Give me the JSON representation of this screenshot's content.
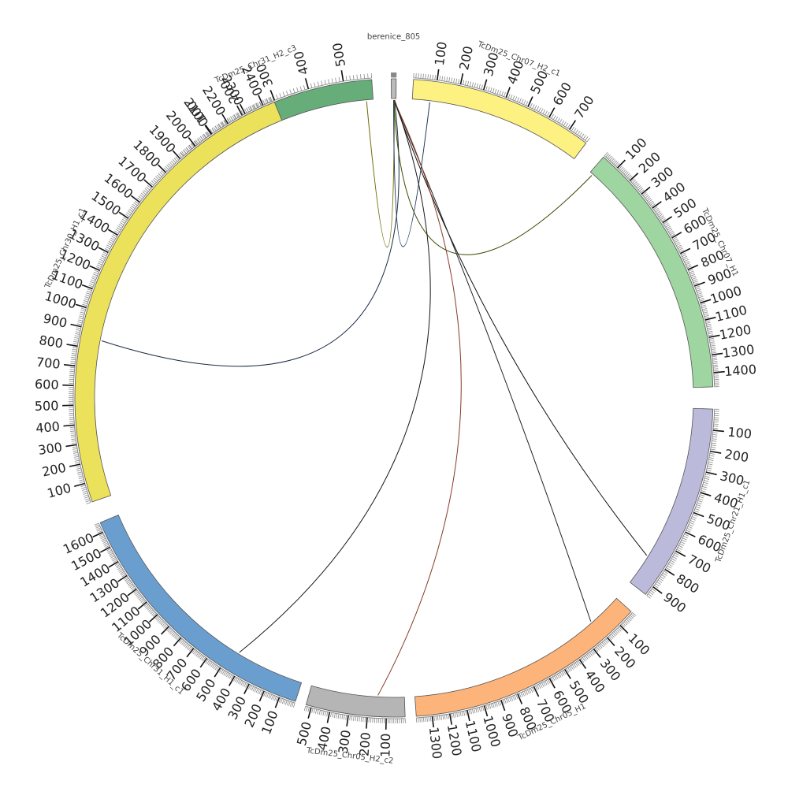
{
  "diagram": {
    "type": "circos",
    "segments": [
      {
        "id": "chr31_h2_c3",
        "label": "TcDm25_Chr31_H2_c3",
        "color": "#66ad7a",
        "start_deg": -41,
        "end_deg": -4,
        "size": 580,
        "tick_step": 100,
        "label_max": 500
      },
      {
        "id": "berenice",
        "label": "berenice_805",
        "color": "#bbbbbb",
        "start_deg": -0.5,
        "end_deg": 0.4,
        "size": 805,
        "tick_step": 100,
        "label_max": 0
      },
      {
        "id": "chr07_h2_c1",
        "label": "TcDm25_Chr07_H2_c1",
        "color": "#fdf182",
        "start_deg": 3.5,
        "end_deg": 37,
        "size": 790,
        "tick_step": 100,
        "label_max": 700
      },
      {
        "id": "chr07_h1",
        "label": "TcDm25_Chr07_H1",
        "color": "#9ed5a1",
        "start_deg": 41,
        "end_deg": 88,
        "size": 1480,
        "tick_step": 100,
        "label_max": 1400
      },
      {
        "id": "chr21_h1_c1",
        "label": "TcDm25_Chr21_H1_c1",
        "color": "#bcbadb",
        "start_deg": 92,
        "end_deg": 128,
        "size": 950,
        "tick_step": 100,
        "label_max": 900
      },
      {
        "id": "chr05_h1",
        "label": "TcDm25_Chr05_H1",
        "color": "#fdb47b",
        "start_deg": 132,
        "end_deg": 176,
        "size": 1390,
        "tick_step": 100,
        "label_max": 1300
      },
      {
        "id": "chr05_h2_c2",
        "label": "TcDm25_Chr05_H2_c2",
        "color": "#b5b5b5",
        "start_deg": 178,
        "end_deg": 196,
        "size": 530,
        "tick_step": 100,
        "label_max": 500
      },
      {
        "id": "chr31_h1_c1",
        "label": "TcDm25_Chr31_H1_c1",
        "color": "#6a9ecf",
        "start_deg": 198,
        "end_deg": 247,
        "size": 1660,
        "tick_step": 100,
        "label_max": 1600
      },
      {
        "id": "chr30_h1_c1",
        "label": "TcDm25_Chr30_H1_c1",
        "color": "#ece15a",
        "start_deg": 251,
        "end_deg": 338,
        "size": 2460,
        "tick_step": 100,
        "label_max": 2400
      }
    ],
    "links": [
      {
        "from": "berenice",
        "from_pos": 500,
        "to": "chr31_h2_c3",
        "to_pos": 560,
        "color": "#6b6b00"
      },
      {
        "from": "berenice",
        "from_pos": 520,
        "to": "chr30_h1_c1",
        "to_pos": 850,
        "color": "#1a2a44"
      },
      {
        "from": "berenice",
        "from_pos": 380,
        "to": "chr07_h2_c1",
        "to_pos": 80,
        "color": "#1d3a5a"
      },
      {
        "from": "berenice",
        "from_pos": 420,
        "to": "chr07_h1",
        "to_pos": 20,
        "color": "#3a4a00"
      },
      {
        "from": "berenice",
        "from_pos": 460,
        "to": "chr21_h1_c1",
        "to_pos": 790,
        "color": "#111111"
      },
      {
        "from": "berenice",
        "from_pos": 440,
        "to": "chr05_h1",
        "to_pos": 210,
        "color": "#222222"
      },
      {
        "from": "berenice",
        "from_pos": 400,
        "to": "chr05_h2_c2",
        "to_pos": 150,
        "color": "#8a3a2a"
      },
      {
        "from": "berenice",
        "from_pos": 540,
        "to": "chr31_h1_c1",
        "to_pos": 450,
        "color": "#1a1a1a"
      }
    ]
  }
}
